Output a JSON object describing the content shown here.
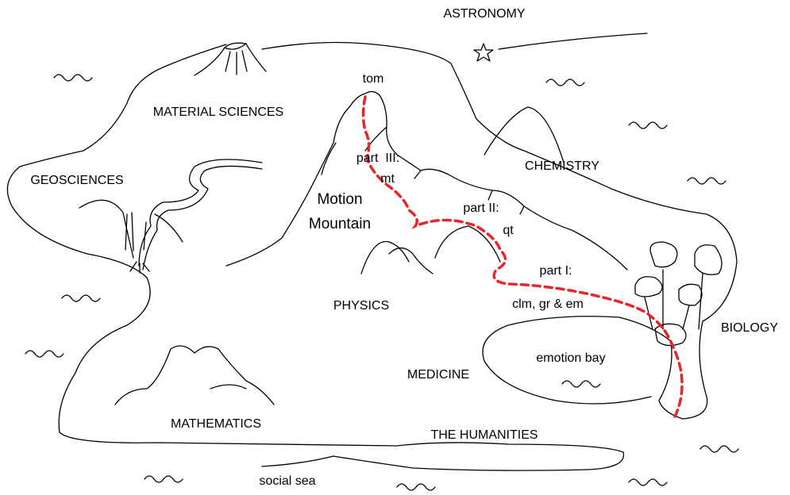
{
  "labels": {
    "astronomy": "ASTRONOMY",
    "peak": "tom",
    "material_sciences": "MATERIAL SCIENCES",
    "chemistry": "CHEMISTRY",
    "geosciences": "GEOSCIENCES",
    "part3_title": "part  III:",
    "part3_topic": "mt",
    "mountain_line1": "Motion",
    "mountain_line2": "Mountain",
    "part2_title": "part II:",
    "part2_topic": "qt",
    "part1_title": "part I:",
    "part1_topic": "clm, gr & em",
    "physics": "PHYSICS",
    "biology": "BIOLOGY",
    "emotion_bay": "emotion bay",
    "medicine": "MEDICINE",
    "mathematics": "MATHEMATICS",
    "humanities": "THE HUMANITIES",
    "social_sea": "social sea"
  }
}
